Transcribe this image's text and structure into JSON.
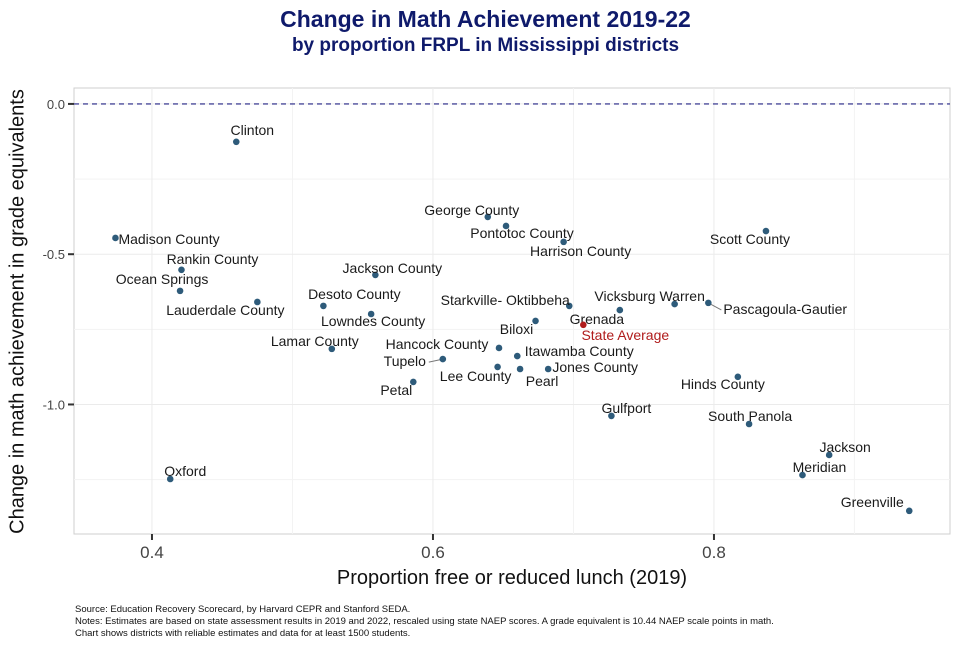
{
  "chart_data": {
    "type": "scatter",
    "title": "Change in Math Achievement 2019-22",
    "subtitle": "by proportion FRPL in Mississippi districts",
    "xlabel": "Proportion free or reduced lunch (2019)",
    "ylabel": "Change in math achievement in grade equivalents",
    "xlim": [
      0.3445,
      0.968
    ],
    "ylim": [
      -1.431,
      0.053
    ],
    "xticks": [
      0.4,
      0.6,
      0.8
    ],
    "xtick_labels": [
      "0.4",
      "0.6",
      "0.8"
    ],
    "yticks": [
      0.0,
      -0.5,
      -1.0
    ],
    "ytick_labels": [
      "0.0",
      "-0.5",
      "-1.0"
    ],
    "grid": true,
    "reference_line": {
      "y": 0.0,
      "style": "dashed",
      "color": "#4a4a9a"
    },
    "point_color": "#2e5b7a",
    "highlight_color": "#b01c1c",
    "points": [
      {
        "label": "Clinton",
        "x": 0.46,
        "y": -0.126
      },
      {
        "label": "Madison County",
        "x": 0.374,
        "y": -0.446
      },
      {
        "label": "Rankin County",
        "x": 0.421,
        "y": -0.552
      },
      {
        "label": "Ocean Springs",
        "x": 0.42,
        "y": -0.622
      },
      {
        "label": "Lauderdale County",
        "x": 0.475,
        "y": -0.659
      },
      {
        "label": "Desoto County",
        "x": 0.522,
        "y": -0.672
      },
      {
        "label": "Lowndes County",
        "x": 0.556,
        "y": -0.699
      },
      {
        "label": "Lamar County",
        "x": 0.528,
        "y": -0.815
      },
      {
        "label": "Jackson County",
        "x": 0.559,
        "y": -0.569
      },
      {
        "label": "George County",
        "x": 0.639,
        "y": -0.376
      },
      {
        "label": "Pontotoc County",
        "x": 0.652,
        "y": -0.406
      },
      {
        "label": "Harrison County",
        "x": 0.693,
        "y": -0.459
      },
      {
        "label": "Starkville- Oktibbeha",
        "x": 0.697,
        "y": -0.672
      },
      {
        "label": "Biloxi",
        "x": 0.673,
        "y": -0.722
      },
      {
        "label": "Grenada",
        "x": 0.733,
        "y": -0.686
      },
      {
        "label": "State Average",
        "x": 0.707,
        "y": -0.735,
        "highlight": true
      },
      {
        "label": "Vicksburg Warren",
        "x": 0.772,
        "y": -0.666
      },
      {
        "label": "Pascagoula-Gautier",
        "x": 0.796,
        "y": -0.662
      },
      {
        "label": "Scott County",
        "x": 0.837,
        "y": -0.423
      },
      {
        "label": "Hancock County",
        "x": 0.647,
        "y": -0.812
      },
      {
        "label": "Tupelo",
        "x": 0.607,
        "y": -0.849
      },
      {
        "label": "Itawamba County",
        "x": 0.66,
        "y": -0.839
      },
      {
        "label": "Lee County",
        "x": 0.646,
        "y": -0.875
      },
      {
        "label": "Pearl",
        "x": 0.662,
        "y": -0.882
      },
      {
        "label": "Jones County",
        "x": 0.682,
        "y": -0.882
      },
      {
        "label": "Petal",
        "x": 0.586,
        "y": -0.925
      },
      {
        "label": "Hinds County",
        "x": 0.817,
        "y": -0.908
      },
      {
        "label": "Gulfport",
        "x": 0.727,
        "y": -1.038
      },
      {
        "label": "South Panola",
        "x": 0.825,
        "y": -1.065
      },
      {
        "label": "Jackson",
        "x": 0.882,
        "y": -1.168
      },
      {
        "label": "Meridian",
        "x": 0.863,
        "y": -1.235
      },
      {
        "label": "Greenville",
        "x": 0.939,
        "y": -1.354
      },
      {
        "label": "Oxford",
        "x": 0.413,
        "y": -1.248
      }
    ]
  },
  "notes": {
    "source": "Source: Education Recovery Scorecard, by Harvard CEPR and Stanford SEDA.",
    "notes": "Notes: Estimates are based on state assessment results in 2019 and 2022, rescaled using state NAEP scores. A grade equivalent is 10.44 NAEP scale points in math.",
    "coverage": "Chart shows districts with reliable estimates and data for at least 1500 students."
  }
}
